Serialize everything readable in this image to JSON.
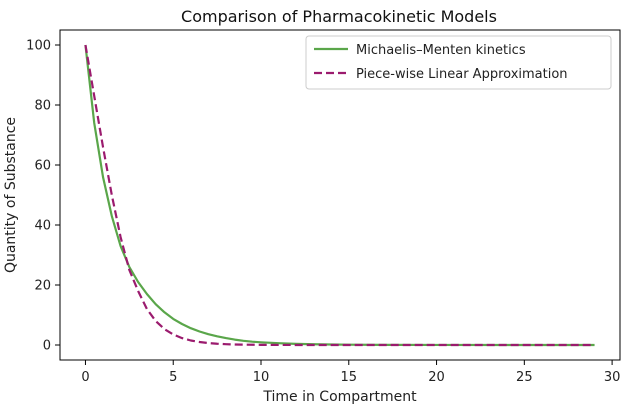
{
  "chart_data": {
    "type": "line",
    "title": "Comparison of Pharmacokinetic Models",
    "xlabel": "Time in Compartment",
    "ylabel": "Quantity of Substance",
    "xlim": [
      -1.45,
      30.45
    ],
    "ylim": [
      -5,
      105
    ],
    "xticks": [
      0,
      5,
      10,
      15,
      20,
      25,
      30
    ],
    "yticks": [
      0,
      20,
      40,
      60,
      80,
      100
    ],
    "grid": false,
    "legend_position": "top-right",
    "series": [
      {
        "name": "Michaelis–Menten kinetics",
        "style": "solid",
        "color": "#5aa64a",
        "x": [
          0,
          0.5,
          1,
          1.5,
          2,
          2.5,
          3,
          3.5,
          4,
          4.5,
          5,
          5.5,
          6,
          6.5,
          7,
          7.5,
          8,
          8.5,
          9,
          9.5,
          10,
          11,
          12,
          13,
          14,
          15,
          17,
          20,
          25,
          29
        ],
        "y": [
          100,
          74,
          56,
          43,
          33,
          26,
          21,
          17,
          13.6,
          10.9,
          8.7,
          7.0,
          5.6,
          4.5,
          3.6,
          2.9,
          2.3,
          1.8,
          1.4,
          1.1,
          0.9,
          0.6,
          0.38,
          0.25,
          0.16,
          0.1,
          0.05,
          0.02,
          0.0,
          0.0
        ]
      },
      {
        "name": "Piece-wise Linear Approximation",
        "style": "dashed",
        "color": "#9b1b6e",
        "x": [
          0,
          0.5,
          1,
          1.5,
          2,
          2.5,
          3,
          3.5,
          4,
          4.5,
          5,
          5.5,
          6,
          6.5,
          7,
          7.5,
          8,
          8.5,
          9,
          10,
          11,
          12,
          15,
          20,
          25,
          29
        ],
        "y": [
          100,
          83,
          66,
          50,
          36,
          25,
          18,
          12,
          8,
          5.3,
          3.5,
          2.3,
          1.5,
          1.0,
          0.65,
          0.42,
          0.27,
          0.17,
          0.11,
          0.05,
          0.02,
          0.01,
          0.0,
          0.0,
          0.0,
          0.0
        ]
      }
    ]
  }
}
